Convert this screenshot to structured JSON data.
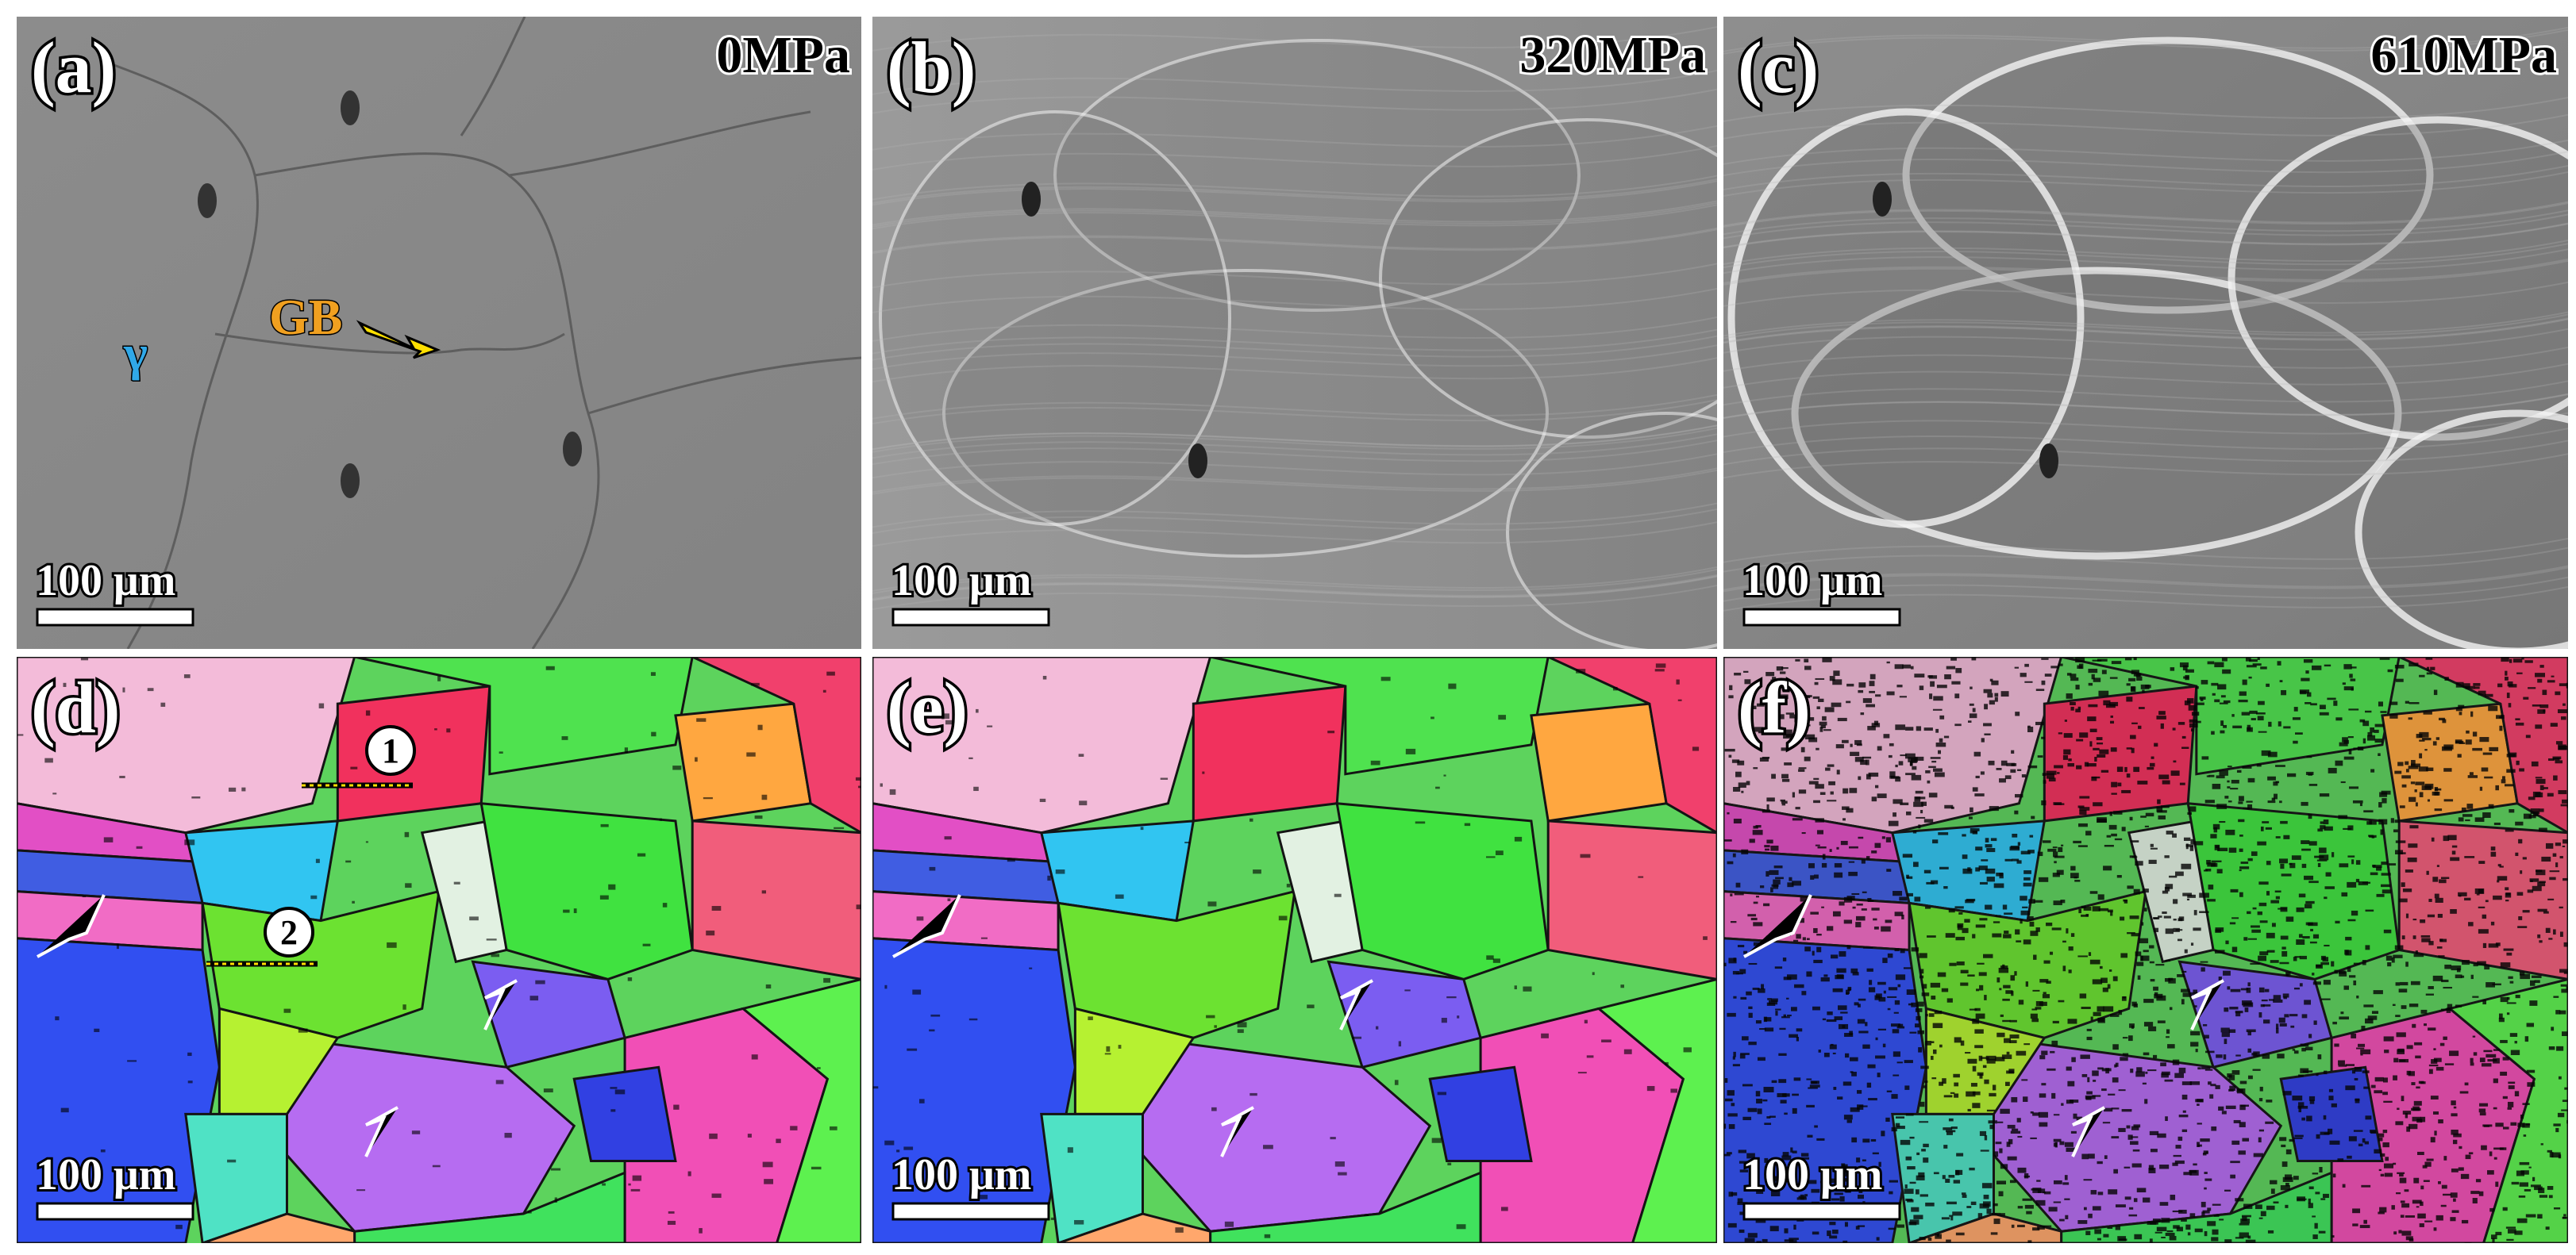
{
  "panels": [
    {
      "label": "(a)",
      "stress": "0MPa",
      "scale_bar": "100 μm"
    },
    {
      "label": "(b)",
      "stress": "320MPa",
      "scale_bar": "100 μm"
    },
    {
      "label": "(c)",
      "stress": "610MPa",
      "scale_bar": "100 μm"
    },
    {
      "label": "(d)",
      "scale_bar": "100 μm"
    },
    {
      "label": "(e)",
      "scale_bar": "100 μm"
    },
    {
      "label": "(f)",
      "scale_bar": "100 μm"
    }
  ],
  "annotations": {
    "grain_boundary": "GB",
    "phase": "γ",
    "line_1": "1",
    "line_2": "2"
  }
}
